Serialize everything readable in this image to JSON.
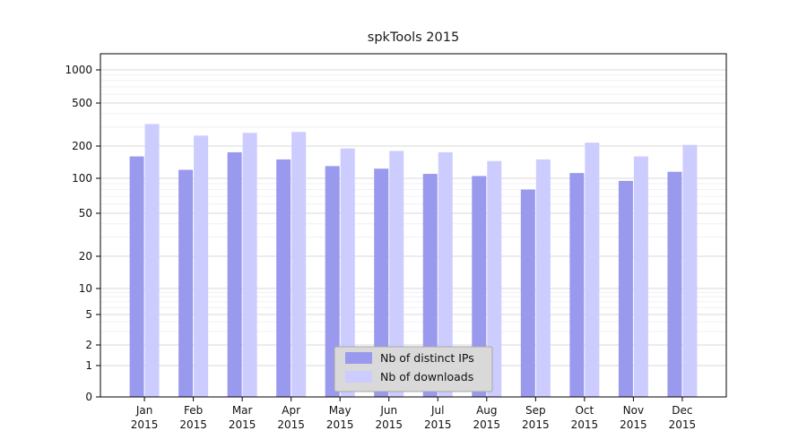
{
  "title": "spkTools 2015",
  "chart_data": {
    "type": "bar",
    "categories": [
      "Jan",
      "Feb",
      "Mar",
      "Apr",
      "May",
      "Jun",
      "Jul",
      "Aug",
      "Sep",
      "Oct",
      "Nov",
      "Dec"
    ],
    "year_label": "2015",
    "series": [
      {
        "name": "Nb of distinct IPs",
        "color": "#9999ee",
        "values": [
          160,
          120,
          175,
          150,
          130,
          123,
          110,
          105,
          80,
          112,
          95,
          115
        ]
      },
      {
        "name": "Nb of downloads",
        "color": "#ccccff",
        "values": [
          320,
          250,
          265,
          270,
          190,
          180,
          175,
          145,
          150,
          215,
          160,
          205
        ]
      }
    ],
    "y_axis": {
      "scale": "symlog",
      "ticks": [
        0,
        1,
        2,
        5,
        10,
        20,
        50,
        100,
        200,
        500,
        1000
      ]
    },
    "legend": {
      "position": "lower center"
    },
    "grid": true
  },
  "colors": {
    "background": "#ffffff",
    "axis": "#000000",
    "grid_major": "#d9d9d9",
    "grid_minor": "#f0f0f0",
    "legend_bg": "#d9d9d9",
    "legend_border": "#a8a8a8"
  }
}
